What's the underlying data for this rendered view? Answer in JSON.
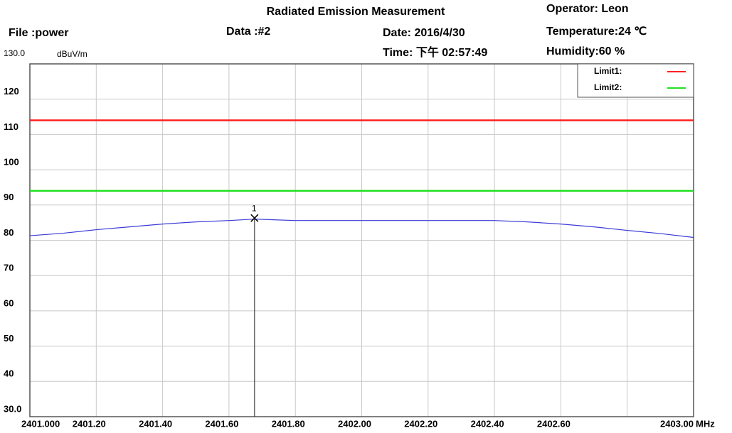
{
  "chart_data": {
    "type": "line",
    "title": "Radiated Emission Measurement",
    "header": {
      "operator": "Operator:  Leon",
      "file": "File :power",
      "data": "Data :#2",
      "date": "Date: 2016/4/30",
      "temperature": "Temperature:24 ℃",
      "time": "Time: 下午 02:57:49",
      "humidity": "Humidity:60 %"
    },
    "y_label": "dBuV/m",
    "x_label": "MHz",
    "xlim": [
      2401.0,
      2403.0
    ],
    "ylim": [
      30,
      130
    ],
    "xticks": [
      {
        "value": 2401.0,
        "label": "2401.000"
      },
      {
        "value": 2401.2,
        "label": "2401.20"
      },
      {
        "value": 2401.4,
        "label": "2401.40"
      },
      {
        "value": 2401.6,
        "label": "2401.60"
      },
      {
        "value": 2401.8,
        "label": "2401.80"
      },
      {
        "value": 2402.0,
        "label": "2402.00"
      },
      {
        "value": 2402.2,
        "label": "2402.20"
      },
      {
        "value": 2402.4,
        "label": "2402.40"
      },
      {
        "value": 2402.6,
        "label": "2402.60"
      },
      {
        "value": 2402.8,
        "label": null
      },
      {
        "value": 2403.0,
        "label": "2403.00"
      }
    ],
    "yticks": [
      {
        "value": 130,
        "label": "130.0"
      },
      120,
      110,
      100,
      90,
      80,
      70,
      60,
      50,
      40,
      {
        "value": 30,
        "label": "30.0"
      }
    ],
    "grid": true,
    "legend": "top-right",
    "limits": [
      {
        "name": "Limit1:",
        "color": "#ff2020",
        "value": 114
      },
      {
        "name": "Limit2:",
        "color": "#20e020",
        "value": 94
      }
    ],
    "series": [
      {
        "color": "#3b3bd6",
        "x": [
          2401.0,
          2401.1,
          2401.2,
          2401.3,
          2401.4,
          2401.5,
          2401.6,
          2401.677,
          2401.8,
          2402.0,
          2402.2,
          2402.4,
          2402.5,
          2402.6,
          2402.7,
          2402.8,
          2402.9,
          2403.0
        ],
        "values": [
          81.3,
          82.0,
          83.0,
          83.8,
          84.6,
          85.2,
          85.6,
          86.0,
          85.6,
          85.6,
          85.6,
          85.6,
          85.2,
          84.6,
          83.8,
          82.8,
          81.9,
          80.8
        ]
      }
    ],
    "markers": [
      {
        "label": "1",
        "x": 2401.677,
        "value": 86.3
      }
    ]
  }
}
